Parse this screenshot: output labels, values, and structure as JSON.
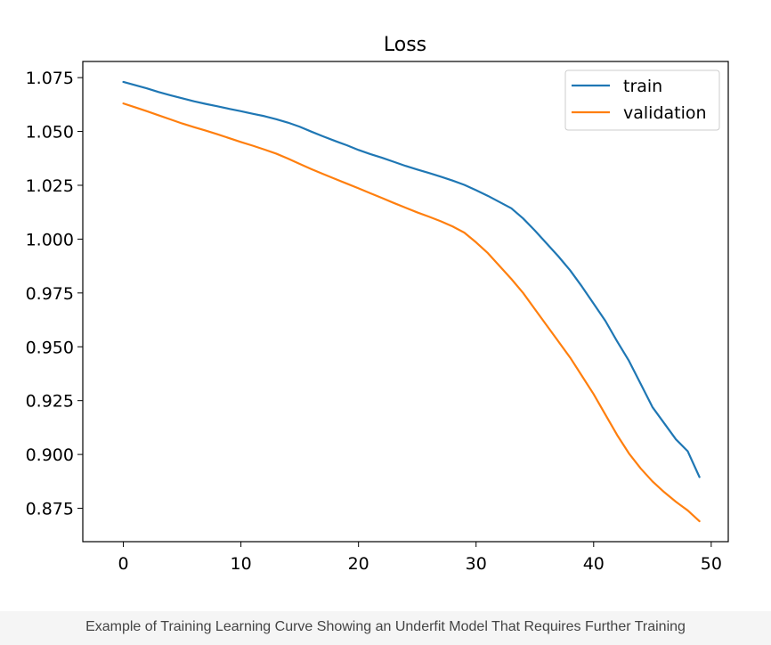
{
  "chart_data": {
    "type": "line",
    "title": "Loss",
    "xlabel": "",
    "ylabel": "",
    "xlim": [
      -3.45,
      51.45
    ],
    "ylim": [
      0.8595,
      1.0825
    ],
    "x_ticks": [
      "0",
      "10",
      "20",
      "30",
      "40",
      "50"
    ],
    "y_ticks": [
      "0.875",
      "0.900",
      "0.925",
      "0.950",
      "0.975",
      "1.000",
      "1.025",
      "1.050",
      "1.075"
    ],
    "grid": false,
    "legend_position": "top-right",
    "x": [
      0,
      1,
      2,
      3,
      4,
      5,
      6,
      7,
      8,
      9,
      10,
      11,
      12,
      13,
      14,
      15,
      16,
      17,
      18,
      19,
      20,
      21,
      22,
      23,
      24,
      25,
      26,
      27,
      28,
      29,
      30,
      31,
      32,
      33,
      34,
      35,
      36,
      37,
      38,
      39,
      40,
      41,
      42,
      43,
      44,
      45,
      46,
      47,
      48,
      49
    ],
    "series": [
      {
        "name": "train",
        "color": "#1f77b4",
        "values": [
          1.073,
          1.0715,
          1.07,
          1.0683,
          1.0668,
          1.0654,
          1.064,
          1.0628,
          1.0617,
          1.0605,
          1.0594,
          1.0582,
          1.0571,
          1.0557,
          1.0541,
          1.0522,
          1.0499,
          1.0477,
          1.0456,
          1.0436,
          1.0414,
          1.0395,
          1.0378,
          1.0359,
          1.034,
          1.0323,
          1.0307,
          1.029,
          1.0272,
          1.0252,
          1.0227,
          1.0201,
          1.0172,
          1.0143,
          1.0096,
          1.004,
          0.998,
          0.992,
          0.9855,
          0.978,
          0.97,
          0.962,
          0.9525,
          0.9435,
          0.9328,
          0.922,
          0.9145,
          0.907,
          0.9015,
          0.8895
        ]
      },
      {
        "name": "validation",
        "color": "#ff7f0e",
        "values": [
          1.063,
          1.0612,
          1.0594,
          1.0575,
          1.0556,
          1.0537,
          1.052,
          1.0504,
          1.0487,
          1.0469,
          1.0451,
          1.0434,
          1.0416,
          1.0397,
          1.0374,
          1.0349,
          1.0325,
          1.0302,
          1.028,
          1.0258,
          1.0236,
          1.0213,
          1.0191,
          1.0168,
          1.0146,
          1.0124,
          1.0104,
          1.0083,
          1.0059,
          1.003,
          0.9985,
          0.9935,
          0.9875,
          0.9815,
          0.975,
          0.9675,
          0.96,
          0.9525,
          0.945,
          0.9365,
          0.928,
          0.9185,
          0.909,
          0.9005,
          0.8935,
          0.8875,
          0.8825,
          0.878,
          0.874,
          0.869
        ]
      }
    ]
  },
  "caption": "Example of Training Learning Curve Showing an Underfit Model That Requires Further Training"
}
